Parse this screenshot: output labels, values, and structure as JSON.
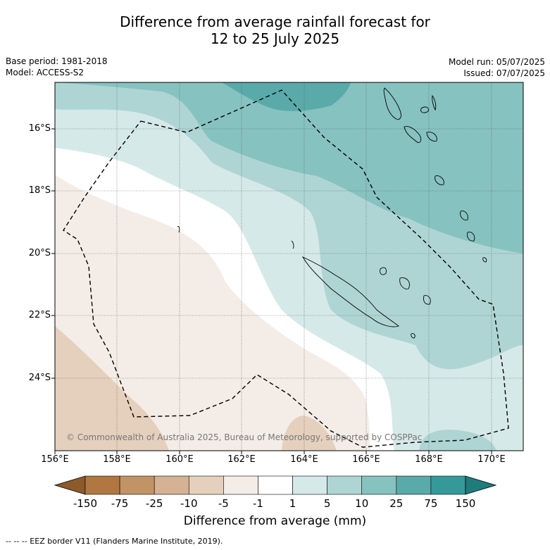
{
  "title_line1": "Difference from average rainfall forecast for",
  "title_line2": "12 to 25 July 2025",
  "base_period": "Base period: 1981-2018",
  "model": "Model: ACCESS-S2",
  "model_run": "Model run: 05/07/2025",
  "issued": "Issued: 07/07/2025",
  "lat_labels": [
    "16°S",
    "18°S",
    "20°S",
    "22°S",
    "24°S"
  ],
  "lon_labels": [
    "156°E",
    "158°E",
    "160°E",
    "162°E",
    "164°E",
    "166°E",
    "168°E",
    "170°E"
  ],
  "copyright": "© Commonwealth of Australia 2025, Bureau of Meteorology, supported by COSPPac",
  "colorbar": {
    "labels": [
      "-150",
      "-75",
      "-25",
      "-10",
      "-5",
      "-1",
      "1",
      "5",
      "10",
      "25",
      "75",
      "150"
    ],
    "colors": [
      "#8c5a2b",
      "#b07840",
      "#c29365",
      "#d4b293",
      "#e5d0bd",
      "#f4ede7",
      "#ffffff",
      "#d5e9e8",
      "#aed5d4",
      "#86c2c0",
      "#5aaaa9",
      "#35999a",
      "#1f7c7c"
    ],
    "title": "Difference from average (mm)"
  },
  "legend_footnote": "--  --  -- EEZ border V11 (Flanders Marine Institute, 2019)."
}
